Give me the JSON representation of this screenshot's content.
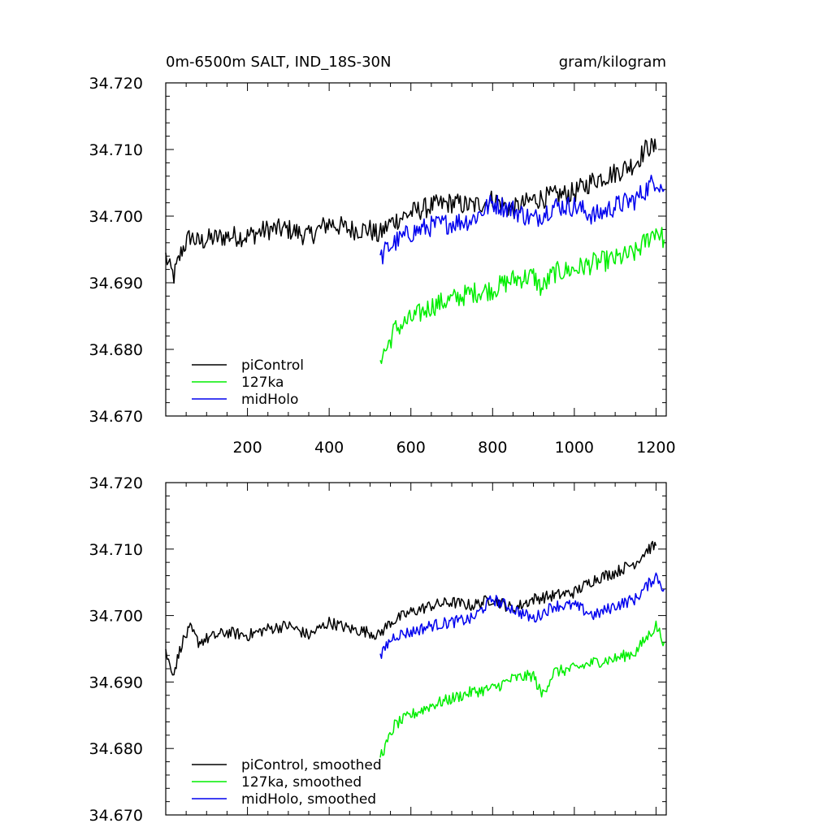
{
  "colors": {
    "piControl": "#000000",
    "127ka": "#00ee00",
    "midHolo": "#0000ee",
    "axis": "#000000",
    "background": "#ffffff"
  },
  "chart_data": [
    {
      "type": "line",
      "title_left": "0m-6500m SALT, IND_18S-30N",
      "title_right": "gram/kilogram",
      "xlim": [
        0,
        1225
      ],
      "ylim": [
        34.67,
        34.72
      ],
      "x_tick_values": [
        200,
        400,
        600,
        800,
        1000,
        1200
      ],
      "x_tick_labels": [
        "200",
        "400",
        "600",
        "800",
        "1000",
        "1200"
      ],
      "y_tick_values": [
        34.67,
        34.68,
        34.69,
        34.7,
        34.71,
        34.72
      ],
      "y_tick_labels": [
        "34.670",
        "34.680",
        "34.690",
        "34.700",
        "34.710",
        "34.720"
      ],
      "legend_position": "bottom-left",
      "series": [
        {
          "name": "piControl",
          "color_key": "piControl",
          "x": [
            0,
            10,
            20,
            40,
            60,
            80,
            100,
            150,
            200,
            250,
            300,
            350,
            400,
            450,
            500,
            520,
            550,
            600,
            650,
            700,
            750,
            800,
            850,
            900,
            950,
            1000,
            1050,
            1100,
            1150,
            1180,
            1200
          ],
          "y": [
            34.694,
            34.692,
            34.691,
            34.695,
            34.697,
            34.696,
            34.6965,
            34.697,
            34.697,
            34.698,
            34.698,
            34.697,
            34.699,
            34.698,
            34.698,
            34.697,
            34.699,
            34.7005,
            34.7015,
            34.702,
            34.7015,
            34.7025,
            34.701,
            34.7025,
            34.703,
            34.7035,
            34.7055,
            34.7065,
            34.708,
            34.7105,
            34.71
          ]
        },
        {
          "name": "127ka",
          "color_key": "127ka",
          "x": [
            525,
            540,
            560,
            600,
            650,
            700,
            750,
            800,
            850,
            900,
            920,
            950,
            1000,
            1050,
            1100,
            1150,
            1200,
            1220
          ],
          "y": [
            34.679,
            34.68,
            34.683,
            34.6845,
            34.6865,
            34.6875,
            34.6885,
            34.689,
            34.6905,
            34.691,
            34.689,
            34.6915,
            34.692,
            34.693,
            34.6935,
            34.6945,
            34.698,
            34.6965
          ]
        },
        {
          "name": "midHolo",
          "color_key": "midHolo",
          "x": [
            525,
            540,
            560,
            600,
            650,
            700,
            750,
            800,
            850,
            900,
            950,
            1000,
            1050,
            1100,
            1150,
            1200,
            1220
          ],
          "y": [
            34.6935,
            34.695,
            34.696,
            34.6975,
            34.6985,
            34.699,
            34.6995,
            34.702,
            34.701,
            34.6995,
            34.7015,
            34.7015,
            34.7,
            34.7015,
            34.7025,
            34.7055,
            34.704
          ]
        }
      ],
      "legend": [
        "piControl",
        "127ka",
        "midHolo"
      ]
    },
    {
      "type": "line",
      "xlim": [
        0,
        1225
      ],
      "ylim": [
        34.67,
        34.72
      ],
      "y_tick_values": [
        34.67,
        34.68,
        34.69,
        34.7,
        34.71,
        34.72
      ],
      "y_tick_labels": [
        "34.670",
        "34.680",
        "34.690",
        "34.700",
        "34.710",
        "34.720"
      ],
      "legend_position": "bottom-left",
      "series": [
        {
          "name": "piControl, smoothed",
          "color_key": "piControl",
          "x": [
            0,
            10,
            20,
            40,
            60,
            80,
            100,
            150,
            200,
            250,
            300,
            350,
            400,
            450,
            500,
            520,
            550,
            600,
            650,
            700,
            750,
            800,
            850,
            900,
            950,
            1000,
            1050,
            1100,
            1150,
            1180,
            1200
          ],
          "y": [
            34.6945,
            34.6925,
            34.6915,
            34.696,
            34.698,
            34.696,
            34.6965,
            34.6975,
            34.697,
            34.698,
            34.6985,
            34.697,
            34.699,
            34.698,
            34.6975,
            34.697,
            34.699,
            34.7005,
            34.7015,
            34.702,
            34.7015,
            34.7025,
            34.701,
            34.7025,
            34.703,
            34.7035,
            34.7055,
            34.7065,
            34.708,
            34.71,
            34.7105
          ]
        },
        {
          "name": "127ka, smoothed",
          "color_key": "127ka",
          "x": [
            525,
            540,
            560,
            600,
            650,
            700,
            750,
            800,
            850,
            900,
            920,
            950,
            1000,
            1050,
            1100,
            1150,
            1200,
            1220
          ],
          "y": [
            34.679,
            34.6805,
            34.6835,
            34.685,
            34.6865,
            34.6875,
            34.6885,
            34.689,
            34.6905,
            34.691,
            34.688,
            34.6915,
            34.692,
            34.693,
            34.6935,
            34.6945,
            34.6985,
            34.696
          ]
        },
        {
          "name": "midHolo, smoothed",
          "color_key": "midHolo",
          "x": [
            525,
            540,
            560,
            600,
            650,
            700,
            750,
            800,
            850,
            900,
            950,
            1000,
            1050,
            1100,
            1150,
            1200,
            1220
          ],
          "y": [
            34.6935,
            34.6955,
            34.697,
            34.6975,
            34.6985,
            34.699,
            34.6995,
            34.7025,
            34.701,
            34.6995,
            34.7015,
            34.7015,
            34.7,
            34.7015,
            34.7025,
            34.706,
            34.704
          ]
        }
      ],
      "legend": [
        "piControl, smoothed",
        "127ka, smoothed",
        "midHolo, smoothed"
      ]
    }
  ]
}
